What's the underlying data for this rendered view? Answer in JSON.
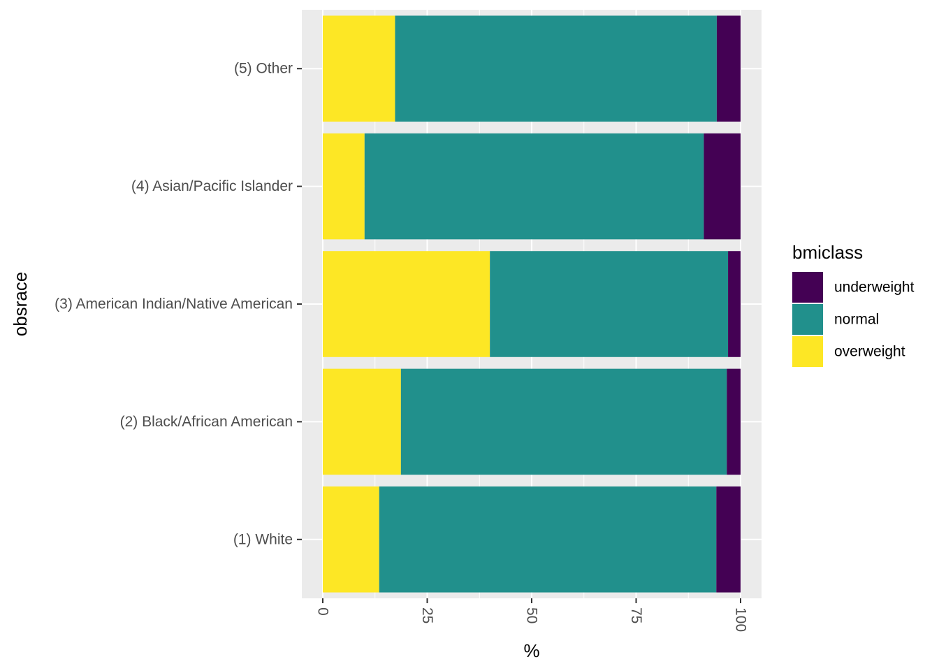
{
  "chart_data": {
    "type": "bar",
    "orientation": "horizontal",
    "stacked": true,
    "categories": [
      "(1) White",
      "(2) Black/African American",
      "(3) American Indian/Native American",
      "(4) Asian/Pacific Islander",
      "(5) Other"
    ],
    "series": [
      {
        "name": "overweight",
        "color": "#FDE725",
        "values": [
          13.5,
          18.7,
          40.0,
          10.0,
          17.3
        ]
      },
      {
        "name": "normal",
        "color": "#21908C",
        "values": [
          80.7,
          78.0,
          57.0,
          81.2,
          77.0
        ]
      },
      {
        "name": "underweight",
        "color": "#440154",
        "values": [
          5.8,
          3.3,
          3.0,
          8.8,
          5.7
        ]
      }
    ],
    "legend_order": [
      "underweight",
      "normal",
      "overweight"
    ],
    "xlabel": "%",
    "ylabel": "obsrace",
    "legend_title": "bmiclass",
    "xlim": [
      0,
      100
    ],
    "xticks": [
      0,
      25,
      50,
      75,
      100
    ],
    "grid": true,
    "legend_position": "right",
    "panel_background": "#EBEBEB"
  }
}
